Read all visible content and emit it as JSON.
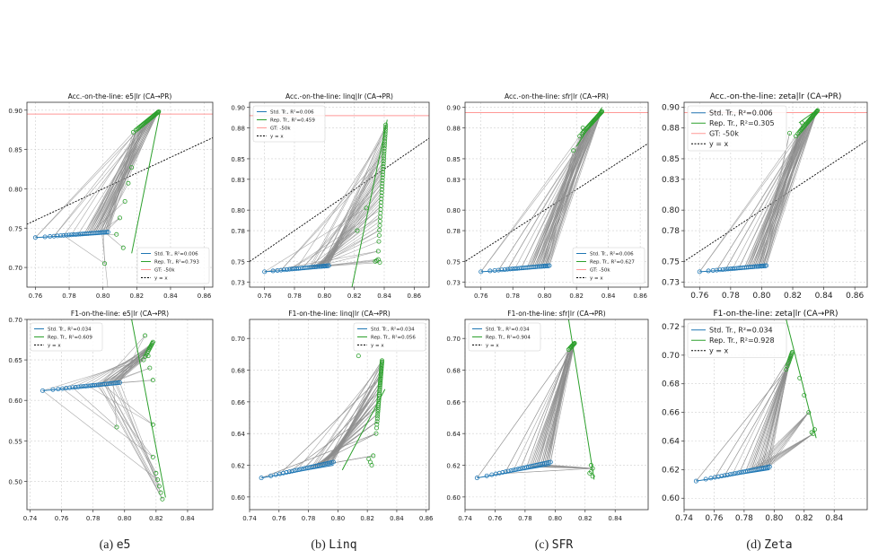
{
  "captions": [
    {
      "letter": "(a)",
      "name": "e5"
    },
    {
      "letter": "(b)",
      "name": "Linq"
    },
    {
      "letter": "(c)",
      "name": "SFR"
    },
    {
      "letter": "(d)",
      "name": "Zeta"
    }
  ],
  "colors": {
    "std": "#1f77b4",
    "rep": "#2ca02c",
    "gt": "#ff9896",
    "diag": "#000000",
    "link": "#8c8c8c",
    "grid": "#d0d0d0"
  },
  "chart_data": [
    {
      "type": "scatter",
      "title": "Acc.-on-the-line: e5|lr  (CA→PR)",
      "xlim": [
        0.755,
        0.865
      ],
      "ylim": [
        0.675,
        0.91
      ],
      "xticks": [
        "0.76",
        "0.78",
        "0.80",
        "0.82",
        "0.84",
        "0.86"
      ],
      "yticks": [
        "0.70",
        "0.75",
        "0.80",
        "0.85",
        "0.90"
      ],
      "legend_position": "lower-right",
      "gt": 0.895,
      "show_diag": true,
      "grid": true,
      "legend": [
        "Std. Tr., R²=0.006",
        "Rep. Tr., R²=0.793",
        "GT: -50k",
        "y = x"
      ],
      "std_start": [
        0.76,
        0.738
      ],
      "std_end": [
        0.803,
        0.745
      ],
      "std_n": 30,
      "rep_high_start": [
        0.818,
        0.872
      ],
      "rep_high_end": [
        0.833,
        0.898
      ],
      "rep_high_n": 30,
      "rep_low": [
        [
          0.801,
          0.705
        ],
        [
          0.803,
          0.672
        ],
        [
          0.808,
          0.742
        ],
        [
          0.81,
          0.763
        ],
        [
          0.813,
          0.784
        ],
        [
          0.815,
          0.807
        ],
        [
          0.817,
          0.827
        ],
        [
          0.812,
          0.725
        ]
      ],
      "rep_fit": [
        [
          0.817,
          0.718
        ],
        [
          0.834,
          0.9
        ]
      ],
      "links": 55
    },
    {
      "type": "scatter",
      "title": "Acc.-on-the-line: linq|lr  (CA→PR)",
      "xlim": [
        0.75,
        0.87
      ],
      "ylim": [
        0.725,
        0.905
      ],
      "xticks": [
        "0.76",
        "0.78",
        "0.80",
        "0.82",
        "0.84",
        "0.86"
      ],
      "yticks": [
        "0.73",
        "0.75",
        "0.78",
        "0.80",
        "0.83",
        "0.85",
        "0.88",
        "0.90"
      ],
      "legend_position": "upper-left",
      "gt": 0.892,
      "show_diag": true,
      "grid": true,
      "legend": [
        "Std. Tr., R²=0.006",
        "Rep. Tr., R²=0.459",
        "GT: -50k",
        "y = x"
      ],
      "std_start": [
        0.76,
        0.74
      ],
      "std_end": [
        0.803,
        0.746
      ],
      "std_n": 30,
      "rep_high_start": [
        0.836,
        0.76
      ],
      "rep_high_end": [
        0.841,
        0.883
      ],
      "rep_high_n": 40,
      "rep_low": [
        [
          0.836,
          0.752
        ],
        [
          0.837,
          0.749
        ],
        [
          0.835,
          0.751
        ],
        [
          0.834,
          0.75
        ],
        [
          0.828,
          0.802
        ],
        [
          0.822,
          0.78
        ]
      ],
      "rep_fit": [
        [
          0.818,
          0.722
        ],
        [
          0.842,
          0.888
        ]
      ],
      "links": 55
    },
    {
      "type": "scatter",
      "title": "Acc.-on-the-line: sfr|lr  (CA→PR)",
      "xlim": [
        0.75,
        0.865
      ],
      "ylim": [
        0.725,
        0.905
      ],
      "xticks": [
        "0.76",
        "0.78",
        "0.80",
        "0.82",
        "0.84",
        "0.86"
      ],
      "yticks": [
        "0.73",
        "0.75",
        "0.78",
        "0.80",
        "0.83",
        "0.85",
        "0.88",
        "0.90"
      ],
      "legend_position": "lower-right",
      "gt": 0.895,
      "show_diag": true,
      "grid": true,
      "legend": [
        "Std. Tr., R²=0.006",
        "Rep. Tr., R²=0.627",
        "GT: -50k",
        "y = x"
      ],
      "std_start": [
        0.76,
        0.74
      ],
      "std_end": [
        0.803,
        0.746
      ],
      "std_n": 30,
      "rep_high_start": [
        0.822,
        0.872
      ],
      "rep_high_end": [
        0.836,
        0.896
      ],
      "rep_high_n": 30,
      "rep_low": [
        [
          0.818,
          0.858
        ],
        [
          0.824,
          0.88
        ]
      ],
      "rep_fit": [
        [
          0.82,
          0.862
        ],
        [
          0.836,
          0.9
        ]
      ],
      "links": 55
    },
    {
      "type": "scatter",
      "title": "Acc.-on-the-line: zeta|lr  (CA→PR)",
      "xlim": [
        0.75,
        0.868
      ],
      "ylim": [
        0.725,
        0.905
      ],
      "xticks": [
        "0.76",
        "0.78",
        "0.80",
        "0.82",
        "0.84",
        "0.86"
      ],
      "yticks": [
        "0.73",
        "0.75",
        "0.78",
        "0.80",
        "0.83",
        "0.85",
        "0.88",
        "0.90"
      ],
      "legend_position": "upper-left",
      "gt": 0.895,
      "show_diag": true,
      "grid": true,
      "legend": [
        "Std. Tr., R²=0.006",
        "Rep. Tr., R²=0.305",
        "GT: -50k",
        "y = x"
      ],
      "std_start": [
        0.76,
        0.74
      ],
      "std_end": [
        0.803,
        0.746
      ],
      "std_n": 30,
      "rep_high_start": [
        0.822,
        0.872
      ],
      "rep_high_end": [
        0.836,
        0.897
      ],
      "rep_high_n": 30,
      "rep_low": [
        [
          0.818,
          0.875
        ],
        [
          0.826,
          0.885
        ]
      ],
      "rep_fit": [
        [
          0.824,
          0.885
        ],
        [
          0.836,
          0.898
        ]
      ],
      "links": 55
    },
    {
      "type": "scatter",
      "title": "F1-on-the-line: e5|lr  (CA→PR)",
      "xlim": [
        0.738,
        0.856
      ],
      "ylim": [
        0.465,
        0.7
      ],
      "xticks": [
        "0.74",
        "0.76",
        "0.78",
        "0.80",
        "0.82",
        "0.84"
      ],
      "yticks": [
        "0.50",
        "0.55",
        "0.60",
        "0.65",
        "0.70"
      ],
      "legend_position": "upper-left",
      "gt": null,
      "show_diag": false,
      "grid": true,
      "legend": [
        "Std. Tr., R²=0.034",
        "Rep. Tr., R²=0.609",
        "y = x"
      ],
      "std_start": [
        0.748,
        0.612
      ],
      "std_end": [
        0.797,
        0.622
      ],
      "std_n": 30,
      "rep_high_start": [
        0.812,
        0.65
      ],
      "rep_high_end": [
        0.818,
        0.672
      ],
      "rep_high_n": 12,
      "rep_low": [
        [
          0.824,
          0.478
        ],
        [
          0.823,
          0.486
        ],
        [
          0.822,
          0.494
        ],
        [
          0.821,
          0.502
        ],
        [
          0.82,
          0.51
        ],
        [
          0.818,
          0.53
        ],
        [
          0.818,
          0.57
        ],
        [
          0.795,
          0.567
        ],
        [
          0.818,
          0.625
        ],
        [
          0.816,
          0.64
        ],
        [
          0.815,
          0.655
        ],
        [
          0.813,
          0.68
        ],
        [
          0.816,
          0.665
        ]
      ],
      "rep_fit": [
        [
          0.804,
          0.705
        ],
        [
          0.826,
          0.48
        ]
      ],
      "links": 55
    },
    {
      "type": "scatter",
      "title": "F1-on-the-line: linq|lr  (CA→PR)",
      "xlim": [
        0.74,
        0.862
      ],
      "ylim": [
        0.592,
        0.712
      ],
      "xticks": [
        "0.74",
        "0.76",
        "0.78",
        "0.80",
        "0.82",
        "0.84",
        "0.86"
      ],
      "yticks": [
        "0.60",
        "0.62",
        "0.64",
        "0.66",
        "0.68",
        "0.70"
      ],
      "legend_position": "upper-right",
      "gt": null,
      "show_diag": false,
      "grid": true,
      "legend": [
        "Std. Tr., R²=0.034",
        "Rep. Tr., R²=0.056",
        "y = x"
      ],
      "std_start": [
        0.748,
        0.612
      ],
      "std_end": [
        0.797,
        0.622
      ],
      "std_n": 30,
      "rep_high_start": [
        0.826,
        0.64
      ],
      "rep_high_end": [
        0.83,
        0.686
      ],
      "rep_high_n": 40,
      "rep_low": [
        [
          0.823,
          0.62
        ],
        [
          0.822,
          0.622
        ],
        [
          0.824,
          0.626
        ],
        [
          0.821,
          0.624
        ],
        [
          0.814,
          0.689
        ]
      ],
      "rep_fit": [
        [
          0.803,
          0.617
        ],
        [
          0.832,
          0.668
        ]
      ],
      "links": 55
    },
    {
      "type": "scatter",
      "title": "F1-on-the-line: sfr|lr  (CA→PR)",
      "xlim": [
        0.74,
        0.862
      ],
      "ylim": [
        0.592,
        0.712
      ],
      "xticks": [
        "0.74",
        "0.76",
        "0.78",
        "0.80",
        "0.82",
        "0.84"
      ],
      "yticks": [
        "0.60",
        "0.62",
        "0.64",
        "0.66",
        "0.68",
        "0.70"
      ],
      "legend_position": "upper-left",
      "gt": null,
      "show_diag": false,
      "grid": true,
      "legend": [
        "Std. Tr., R²=0.034",
        "Rep. Tr., R²=0.904",
        "y = x"
      ],
      "std_start": [
        0.748,
        0.612
      ],
      "std_end": [
        0.797,
        0.622
      ],
      "std_n": 30,
      "rep_high_start": [
        0.809,
        0.693
      ],
      "rep_high_end": [
        0.813,
        0.697
      ],
      "rep_high_n": 10,
      "rep_low": [
        [
          0.825,
          0.613
        ],
        [
          0.824,
          0.616
        ],
        [
          0.825,
          0.618
        ],
        [
          0.823,
          0.615
        ],
        [
          0.824,
          0.62
        ]
      ],
      "rep_fit": [
        [
          0.809,
          0.712
        ],
        [
          0.826,
          0.611
        ]
      ],
      "links": 55
    },
    {
      "type": "scatter",
      "title": "F1-on-the-line: zeta|lr  (CA→PR)",
      "xlim": [
        0.74,
        0.862
      ],
      "ylim": [
        0.592,
        0.725
      ],
      "xticks": [
        "0.74",
        "0.76",
        "0.78",
        "0.80",
        "0.82",
        "0.84"
      ],
      "yticks": [
        "0.60",
        "0.62",
        "0.64",
        "0.66",
        "0.68",
        "0.70",
        "0.72"
      ],
      "legend_position": "upper-left",
      "gt": null,
      "show_diag": false,
      "grid": true,
      "legend": [
        "Std. Tr., R²=0.034",
        "Rep. Tr., R²=0.928",
        "y = x"
      ],
      "std_start": [
        0.748,
        0.612
      ],
      "std_end": [
        0.797,
        0.622
      ],
      "std_n": 30,
      "rep_high_start": [
        0.808,
        0.69
      ],
      "rep_high_end": [
        0.812,
        0.702
      ],
      "rep_high_n": 12,
      "rep_low": [
        [
          0.826,
          0.645
        ],
        [
          0.827,
          0.648
        ],
        [
          0.825,
          0.646
        ],
        [
          0.823,
          0.66
        ],
        [
          0.82,
          0.672
        ],
        [
          0.817,
          0.684
        ]
      ],
      "rep_fit": [
        [
          0.808,
          0.725
        ],
        [
          0.828,
          0.642
        ]
      ],
      "links": 55
    }
  ]
}
